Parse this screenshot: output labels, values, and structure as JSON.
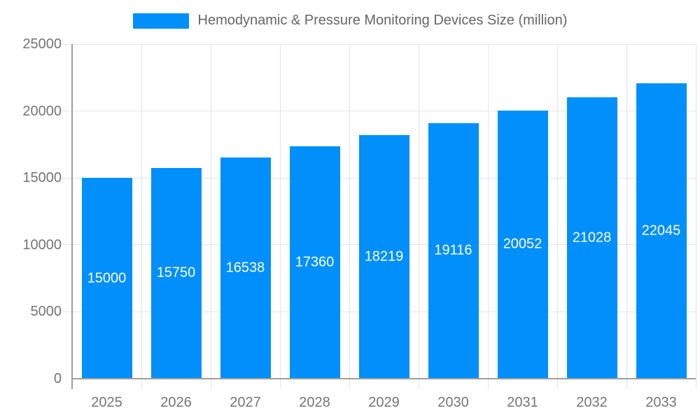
{
  "chart": {
    "legend_label": "Hemodynamic & Pressure Monitoring Devices Size (million)",
    "colors": {
      "bar": "#008FFB",
      "grid": "#e4e4e4",
      "axis": "#9e9e9e",
      "tick_text": "#757575",
      "legend_text": "#666666",
      "value_label": "#ffffff"
    }
  },
  "chart_data": {
    "type": "bar",
    "title": "Hemodynamic & Pressure Monitoring Devices Size (million)",
    "series": [
      {
        "name": "Hemodynamic & Pressure Monitoring Devices Size (million)",
        "values": [
          15000,
          15750,
          16538,
          17360,
          18219,
          19116,
          20052,
          21028,
          22045
        ]
      }
    ],
    "categories": [
      "2025",
      "2026",
      "2027",
      "2028",
      "2029",
      "2030",
      "2031",
      "2032",
      "2033"
    ],
    "value_labels_shown": [
      15000,
      15750,
      16538,
      17360,
      18219,
      19116,
      20052,
      21028,
      22045
    ],
    "xlabel": "",
    "ylabel": "",
    "ylim": [
      0,
      25000
    ],
    "yticks": [
      0,
      5000,
      10000,
      15000,
      20000,
      25000
    ],
    "grid": "both",
    "legend_position": "top-center",
    "bar_color": "#008FFB",
    "value_label_position": "inside-center",
    "value_label_color": "#ffffff"
  }
}
